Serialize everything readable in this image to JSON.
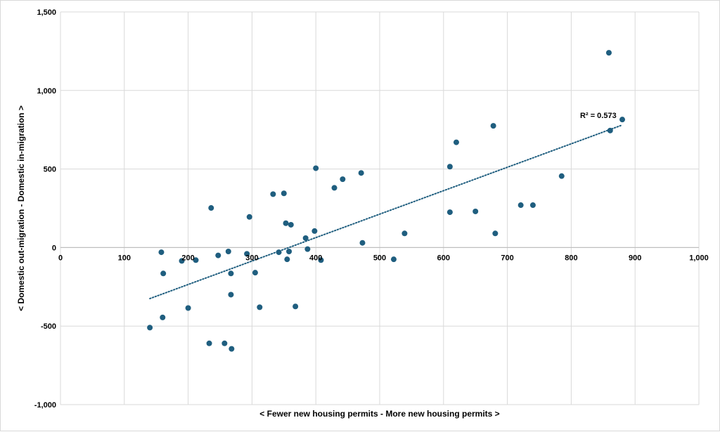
{
  "chart_data": {
    "type": "scatter",
    "xlabel": "< Fewer new housing permits - More new housing permits >",
    "ylabel": "< Domestic out-migration - Domestic in-migration >",
    "xlim": [
      0,
      1000
    ],
    "ylim": [
      -1000,
      1500
    ],
    "x_ticks": [
      0,
      100,
      200,
      300,
      400,
      500,
      600,
      700,
      800,
      900,
      1000
    ],
    "x_tick_labels": [
      "0",
      "100",
      "200",
      "300",
      "400",
      "500",
      "600",
      "700",
      "800",
      "900",
      "1,000"
    ],
    "y_ticks": [
      -1000,
      -500,
      0,
      500,
      1000,
      1500
    ],
    "y_tick_labels": [
      "-1,000",
      "-500",
      "0",
      "500",
      "1,000",
      "1,500"
    ],
    "grid": true,
    "legend": "none",
    "point_color": "#1f5e7f",
    "trendline": {
      "type": "linear",
      "style": "dotted",
      "color": "#1f5e7f",
      "x": [
        140,
        880
      ],
      "y": [
        -325,
        780
      ],
      "r2_label": "R² = 0.573"
    },
    "points": [
      {
        "x": 140,
        "y": -510
      },
      {
        "x": 158,
        "y": -30
      },
      {
        "x": 160,
        "y": -445
      },
      {
        "x": 161,
        "y": -165
      },
      {
        "x": 190,
        "y": -85
      },
      {
        "x": 200,
        "y": -385
      },
      {
        "x": 212,
        "y": -80
      },
      {
        "x": 233,
        "y": -610
      },
      {
        "x": 236,
        "y": 252
      },
      {
        "x": 247,
        "y": -50
      },
      {
        "x": 257,
        "y": -610
      },
      {
        "x": 263,
        "y": -25
      },
      {
        "x": 267,
        "y": -165
      },
      {
        "x": 267,
        "y": -300
      },
      {
        "x": 268,
        "y": -645
      },
      {
        "x": 292,
        "y": -40
      },
      {
        "x": 296,
        "y": 195
      },
      {
        "x": 305,
        "y": -160
      },
      {
        "x": 312,
        "y": -380
      },
      {
        "x": 333,
        "y": 340
      },
      {
        "x": 342,
        "y": -30
      },
      {
        "x": 350,
        "y": 345
      },
      {
        "x": 353,
        "y": 155
      },
      {
        "x": 355,
        "y": -75
      },
      {
        "x": 358,
        "y": -25
      },
      {
        "x": 361,
        "y": 145
      },
      {
        "x": 368,
        "y": -375
      },
      {
        "x": 384,
        "y": 60
      },
      {
        "x": 387,
        "y": -10
      },
      {
        "x": 398,
        "y": 105
      },
      {
        "x": 400,
        "y": 505
      },
      {
        "x": 408,
        "y": -80
      },
      {
        "x": 429,
        "y": 380
      },
      {
        "x": 442,
        "y": 435
      },
      {
        "x": 471,
        "y": 475
      },
      {
        "x": 473,
        "y": 30
      },
      {
        "x": 522,
        "y": -75
      },
      {
        "x": 539,
        "y": 90
      },
      {
        "x": 610,
        "y": 515
      },
      {
        "x": 610,
        "y": 225
      },
      {
        "x": 620,
        "y": 670
      },
      {
        "x": 650,
        "y": 230
      },
      {
        "x": 678,
        "y": 775
      },
      {
        "x": 681,
        "y": 90
      },
      {
        "x": 721,
        "y": 270
      },
      {
        "x": 740,
        "y": 270
      },
      {
        "x": 785,
        "y": 455
      },
      {
        "x": 859,
        "y": 1240
      },
      {
        "x": 861,
        "y": 745
      },
      {
        "x": 880,
        "y": 815
      }
    ]
  }
}
